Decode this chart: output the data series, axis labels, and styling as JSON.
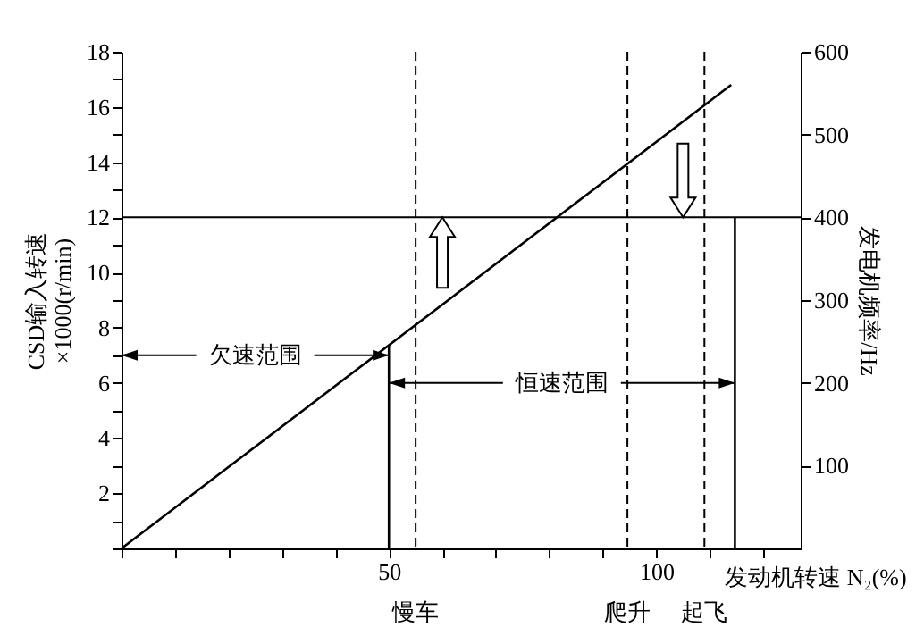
{
  "chart_data": {
    "type": "line",
    "series": [
      {
        "color": "#000000",
        "x": [
          0,
          114
        ],
        "values": [
          0,
          16.8
        ]
      },
      {
        "color": "#000000",
        "x": [
          50,
          50
        ],
        "values": [
          0,
          7.35
        ]
      },
      {
        "color": "#000000",
        "x": [
          114.7,
          114.7
        ],
        "values": [
          0,
          12
        ]
      }
    ],
    "xlabel": "发动机转速 N₂(%)",
    "ylabel": "CSD输入转速\n×1000(r/min)",
    "y2label": "发电机频率/Hz",
    "xlim": [
      0,
      127
    ],
    "xticks": [
      {
        "value": 0,
        "label": null
      },
      {
        "value": 10,
        "label": null
      },
      {
        "value": 20,
        "label": null
      },
      {
        "value": 30,
        "label": null
      },
      {
        "value": 40,
        "label": null
      },
      50,
      {
        "value": 60,
        "label": null
      },
      {
        "value": 70,
        "label": null
      },
      {
        "value": 80,
        "label": null
      },
      {
        "value": 90,
        "label": null
      },
      100,
      {
        "value": 110,
        "label": null
      },
      {
        "value": 120,
        "label": null
      }
    ],
    "ylim": [
      0,
      18
    ],
    "yticks": [
      {
        "value": 0,
        "label": null
      },
      {
        "value": 1,
        "label": null
      },
      2,
      {
        "value": 3,
        "label": null
      },
      4,
      {
        "value": 5,
        "label": null
      },
      6,
      {
        "value": 7,
        "label": null
      },
      8,
      {
        "value": 9,
        "label": null
      },
      10,
      {
        "value": 11,
        "label": null
      },
      12,
      {
        "value": 13,
        "label": null
      },
      14,
      {
        "value": 15,
        "label": null
      },
      16,
      {
        "value": 17,
        "label": null
      },
      18
    ],
    "y2lim": [
      0,
      600
    ],
    "y2ticks": [
      100,
      200,
      300,
      400,
      500,
      600
    ],
    "ref_lines": [
      {
        "axis": "y",
        "value": 12,
        "color": "#000000",
        "line_style": "solid"
      },
      {
        "axis": "x",
        "value": 55,
        "label": "慢车",
        "color": "#000000",
        "line_style": "dashed"
      },
      {
        "axis": "x",
        "value": 94.6,
        "label": "爬升",
        "color": "#000000",
        "line_style": "dashed"
      },
      {
        "axis": "x",
        "value": 109,
        "label": "起飞",
        "color": "#000000",
        "line_style": "dashed"
      }
    ],
    "annotations": [
      {
        "text": "欠速范围",
        "x": 50,
        "y": 7
      },
      {
        "text": "恒速范围",
        "x": 114.7,
        "y": 6
      }
    ],
    "grid": false,
    "marker": "none",
    "line_style": "solid"
  }
}
